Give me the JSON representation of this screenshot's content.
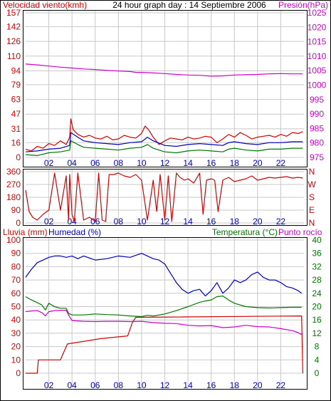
{
  "title": "24 hour graph day : 14 Septiembre 2006",
  "colors": {
    "red": "#d40000",
    "blue": "#0000bb",
    "magenta": "#cc00cc",
    "green": "#007700",
    "grid": "#c8c8c8",
    "frame": "#000000"
  },
  "hour_labels": [
    "02",
    "04",
    "06",
    "08",
    "10",
    "12",
    "14",
    "16",
    "18",
    "20",
    "22"
  ],
  "chart_data": [
    {
      "type": "line",
      "title": "24 hour graph day : 14 Septiembre 2006",
      "left_axis_label": "Velocidad viento(kmh)",
      "right_axis_label": "Presión(hPa)",
      "x_range": [
        0,
        24
      ],
      "left_ylim": [
        0,
        157
      ],
      "left_ticks": [
        0,
        16,
        31,
        47,
        63,
        79,
        94,
        110,
        126,
        142,
        157
      ],
      "right_ylim": [
        975,
        1025
      ],
      "right_ticks": [
        975,
        980,
        985,
        990,
        995,
        1000,
        1005,
        1010,
        1015,
        1020,
        1025
      ],
      "grid": true,
      "series": [
        {
          "axis": "left",
          "color": "#d40000",
          "x": [
            0,
            0.5,
            1,
            1.5,
            2,
            2.5,
            3,
            3.5,
            3.8,
            3.9,
            4.1,
            4.5,
            5,
            5.5,
            6,
            6.5,
            7,
            7.5,
            8,
            8.5,
            9,
            9.5,
            10,
            10.3,
            10.6,
            11,
            11.5,
            12,
            12.5,
            13,
            13.5,
            14,
            14.5,
            15,
            15.5,
            16,
            16.5,
            17,
            17.5,
            18,
            18.5,
            19,
            19.5,
            20,
            20.5,
            21,
            21.5,
            22,
            22.5,
            23,
            23.5,
            23.9
          ],
          "values": [
            9,
            7,
            12,
            10,
            15,
            13,
            18,
            14,
            22,
            42,
            30,
            25,
            22,
            24,
            21,
            20,
            23,
            19,
            20,
            24,
            22,
            21,
            26,
            34,
            30,
            22,
            14,
            18,
            21,
            20,
            19,
            22,
            20,
            21,
            23,
            22,
            16,
            20,
            25,
            22,
            27,
            24,
            20,
            22,
            23,
            24,
            22,
            25,
            23,
            27,
            26,
            28
          ]
        },
        {
          "axis": "left",
          "color": "#0000bb",
          "x": [
            0,
            1,
            2,
            3,
            3.8,
            3.9,
            4.5,
            5,
            6,
            7,
            8,
            9,
            10,
            10.5,
            11,
            12,
            13,
            14,
            15,
            16,
            17,
            17.5,
            18,
            19,
            20,
            21,
            22,
            23,
            23.9
          ],
          "values": [
            6,
            7,
            9,
            10,
            13,
            27,
            22,
            18,
            16,
            15,
            14,
            16,
            17,
            22,
            18,
            13,
            12,
            14,
            15,
            14,
            13,
            16,
            17,
            15,
            14,
            16,
            16,
            17,
            17
          ]
        },
        {
          "axis": "left",
          "color": "#007700",
          "x": [
            0,
            1,
            2,
            3,
            3.8,
            3.9,
            4.5,
            5,
            6,
            7,
            8,
            9,
            10,
            10.5,
            11,
            12,
            13,
            14,
            15,
            16,
            17,
            17.5,
            18,
            19,
            20,
            21,
            22,
            23,
            23.9
          ],
          "values": [
            3,
            2,
            5,
            6,
            8,
            18,
            14,
            11,
            10,
            9,
            8,
            10,
            11,
            14,
            10,
            6,
            5,
            7,
            8,
            7,
            6,
            9,
            10,
            8,
            7,
            9,
            9,
            10,
            10
          ]
        },
        {
          "axis": "right",
          "color": "#cc00cc",
          "x": [
            0,
            1,
            2,
            3,
            4,
            5,
            6,
            7,
            8,
            9,
            9.5,
            10,
            11,
            12,
            13,
            14,
            15,
            16,
            17,
            18,
            19,
            20,
            21,
            22,
            23,
            23.9
          ],
          "values": [
            1007.3,
            1007.0,
            1006.6,
            1006.2,
            1005.9,
            1005.6,
            1005.4,
            1005.1,
            1004.9,
            1004.7,
            1004.4,
            1004.4,
            1004.2,
            1004.0,
            1003.7,
            1003.5,
            1003.4,
            1003.1,
            1003.2,
            1003.5,
            1003.6,
            1003.7,
            1003.9,
            1004.0,
            1003.9,
            1003.9
          ]
        }
      ]
    },
    {
      "type": "line",
      "left_axis_label": "",
      "right_axis_label": "",
      "x_range": [
        0,
        24
      ],
      "left_ylim": [
        0,
        360
      ],
      "left_ticks": [
        0,
        90,
        180,
        270,
        360
      ],
      "right_ticks": [
        "N",
        "E",
        "S",
        "W",
        "N"
      ],
      "grid": true,
      "series": [
        {
          "axis": "left",
          "color": "#d40000",
          "x": [
            0,
            0.3,
            0.6,
            1,
            1.5,
            2,
            2.5,
            3,
            3.5,
            3.7,
            3.8,
            4,
            4.2,
            4.5,
            5,
            5.5,
            6,
            6.3,
            6.6,
            6.9,
            7.2,
            7.6,
            8,
            8.5,
            9,
            9.5,
            10,
            10.5,
            11,
            11.3,
            11.6,
            12,
            12.3,
            12.6,
            13,
            13.3,
            13.7,
            14,
            14.5,
            15,
            15.3,
            15.6,
            16,
            16.3,
            16.6,
            17,
            17.5,
            18,
            18.5,
            19,
            19.5,
            20,
            20.5,
            21,
            21.5,
            22,
            22.5,
            23,
            23.5,
            23.9
          ],
          "values": [
            230,
            80,
            40,
            20,
            60,
            90,
            350,
            90,
            330,
            20,
            340,
            60,
            10,
            350,
            20,
            40,
            10,
            350,
            20,
            10,
            340,
            340,
            350,
            330,
            320,
            340,
            300,
            20,
            300,
            80,
            340,
            20,
            330,
            10,
            350,
            320,
            300,
            310,
            280,
            350,
            60,
            300,
            310,
            300,
            80,
            300,
            320,
            290,
            300,
            310,
            330,
            300,
            310,
            320,
            315,
            320,
            325,
            315,
            320,
            315
          ]
        }
      ]
    },
    {
      "type": "line",
      "left_axis_label": "Lluvia (mm)",
      "left_axis_label_2": "Humedad (%)",
      "right_axis_label": "Temperatura (°C)",
      "right_axis_label_2": "Punto rocío",
      "x_range": [
        0,
        24
      ],
      "left_ylim": [
        0,
        100
      ],
      "left_ticks": [
        0,
        10,
        20,
        30,
        40,
        50,
        60,
        70,
        80,
        90,
        100
      ],
      "right_ylim": [
        0,
        40
      ],
      "right_ticks": [
        0,
        4,
        8,
        12,
        16,
        20,
        24,
        28,
        32,
        36,
        40
      ],
      "grid": true,
      "series": [
        {
          "axis": "left",
          "color": "#d40000",
          "x": [
            0,
            1.0,
            1.1,
            3.0,
            3.5,
            3.6,
            6.5,
            8.8,
            9.2,
            9.5,
            23.8,
            23.9
          ],
          "values": [
            0,
            0,
            10,
            10,
            20,
            22,
            26,
            28,
            38,
            42,
            43,
            0
          ]
        },
        {
          "axis": "left",
          "color": "#0000bb",
          "x": [
            0,
            0.5,
            1,
            1.5,
            2,
            2.5,
            3,
            3.5,
            4,
            4.5,
            5,
            6,
            7,
            8,
            9,
            10,
            10.5,
            11,
            11.5,
            12,
            12.5,
            13,
            13.5,
            14,
            14.5,
            15,
            15.5,
            16,
            16.5,
            17,
            17.5,
            18,
            18.5,
            19,
            19.5,
            20,
            20.5,
            21,
            21.5,
            22,
            22.5,
            23,
            23.5,
            23.8
          ],
          "values": [
            72,
            78,
            83,
            85,
            87,
            88,
            88,
            87,
            88,
            86,
            88,
            85,
            86,
            88,
            87,
            90,
            88,
            86,
            85,
            82,
            75,
            68,
            63,
            60,
            62,
            63,
            58,
            62,
            68,
            60,
            64,
            70,
            68,
            70,
            74,
            76,
            72,
            70,
            70,
            68,
            65,
            64,
            62,
            60
          ]
        },
        {
          "axis": "right",
          "color": "#007700",
          "x": [
            0,
            0.5,
            1,
            1.4,
            1.7,
            2,
            2.5,
            3,
            3.5,
            3.7,
            4,
            5,
            6,
            7,
            8,
            9,
            10,
            10.5,
            11,
            12,
            13,
            14,
            15,
            15.5,
            16,
            16.5,
            17,
            17.5,
            18,
            19,
            20,
            21,
            22,
            23,
            23.8
          ],
          "values": [
            23.0,
            22.0,
            21.2,
            20.5,
            19.0,
            21.0,
            20.0,
            19.5,
            19.5,
            18.0,
            17.5,
            17.5,
            17.8,
            17.6,
            17.5,
            17.2,
            17.0,
            17.4,
            17.2,
            17.8,
            18.8,
            20.0,
            21.3,
            21.7,
            22.0,
            23.0,
            23.2,
            22.0,
            21.0,
            20.0,
            19.7,
            19.6,
            19.7,
            19.8,
            19.8
          ]
        },
        {
          "axis": "right",
          "color": "#cc00cc",
          "x": [
            0,
            0.5,
            1,
            1.4,
            1.7,
            2,
            2.5,
            3,
            3.5,
            3.7,
            4,
            5,
            6,
            7,
            8,
            9,
            10,
            11,
            12,
            13,
            14,
            15,
            16,
            17,
            18,
            19,
            20,
            21,
            22,
            23,
            23.5,
            23.8
          ],
          "values": [
            18.5,
            18.7,
            18.8,
            18.2,
            17.2,
            18.5,
            18.8,
            18.9,
            18.9,
            17.5,
            15.8,
            15.6,
            15.5,
            15.6,
            15.6,
            15.5,
            15.6,
            15.2,
            15.0,
            14.9,
            14.4,
            14.2,
            14.3,
            13.7,
            13.9,
            14.4,
            14.0,
            13.9,
            13.4,
            12.8,
            12.2,
            11.6
          ]
        }
      ]
    }
  ]
}
